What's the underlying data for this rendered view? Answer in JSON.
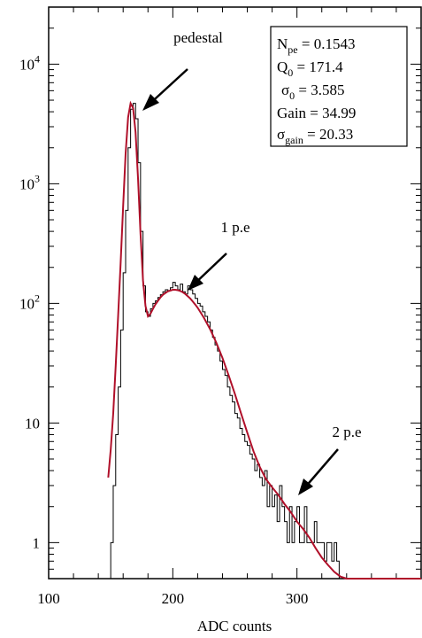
{
  "chart_data": {
    "type": "line",
    "title": "",
    "xlabel": "ADC counts",
    "ylabel": "",
    "xlim": [
      100,
      400
    ],
    "ylim": [
      0.5,
      30000
    ],
    "y_scale": "log",
    "x_ticks": [
      {
        "value": 100,
        "label": "100"
      },
      {
        "value": 200,
        "label": "200"
      },
      {
        "value": 300,
        "label": "300"
      }
    ],
    "y_ticks": [
      {
        "value": 1,
        "label": "1",
        "sup": ""
      },
      {
        "value": 10,
        "label": "10",
        "sup": ""
      },
      {
        "value": 100,
        "label": "10",
        "sup": "2"
      },
      {
        "value": 1000,
        "label": "10",
        "sup": "3"
      },
      {
        "value": 10000,
        "label": "10",
        "sup": "4"
      }
    ],
    "grid": false,
    "colors": {
      "histogram": "#000000",
      "fit": "#b0102a"
    },
    "series": [
      {
        "kind": "histogram",
        "x": [
          150,
          152,
          154,
          156,
          158,
          160,
          162,
          164,
          166,
          168,
          170,
          172,
          174,
          176,
          178,
          180,
          182,
          184,
          186,
          188,
          190,
          192,
          194,
          196,
          198,
          200,
          202,
          204,
          206,
          208,
          210,
          212,
          214,
          216,
          218,
          220,
          222,
          224,
          226,
          228,
          230,
          232,
          234,
          236,
          238,
          240,
          242,
          244,
          246,
          248,
          250,
          252,
          254,
          256,
          258,
          260,
          262,
          264,
          266,
          268,
          270,
          272,
          274,
          276,
          278,
          280,
          282,
          284,
          286,
          288,
          290,
          292,
          294,
          296,
          298,
          300,
          302,
          304,
          306,
          308,
          310,
          312,
          314,
          316,
          318,
          320,
          322,
          324,
          326,
          328,
          330,
          332
        ],
        "y": [
          1,
          3,
          8,
          20,
          60,
          180,
          600,
          2000,
          4200,
          4700,
          3500,
          1500,
          400,
          140,
          85,
          78,
          90,
          100,
          105,
          112,
          118,
          125,
          130,
          128,
          135,
          150,
          140,
          130,
          145,
          125,
          120,
          140,
          130,
          120,
          110,
          100,
          95,
          85,
          78,
          70,
          60,
          52,
          45,
          40,
          33,
          28,
          25,
          20,
          17,
          15,
          12,
          11,
          9,
          8,
          7,
          6.5,
          5.5,
          5,
          4,
          4.5,
          3.5,
          3,
          4,
          2,
          3,
          2,
          2.5,
          1.5,
          3,
          2,
          1.5,
          1,
          2,
          1,
          1.5,
          2,
          1,
          1,
          2,
          1,
          1,
          1,
          1.5,
          1,
          1,
          1,
          0.7,
          1,
          1,
          0.7,
          1,
          0.7
        ]
      },
      {
        "kind": "fit",
        "x": [
          148,
          150,
          152,
          154,
          156,
          158,
          160,
          162,
          164,
          166,
          168,
          170,
          172,
          174,
          176,
          178,
          180,
          182,
          184,
          186,
          188,
          190,
          192,
          194,
          196,
          198,
          200,
          202,
          204,
          206,
          208,
          210,
          212,
          214,
          216,
          218,
          220,
          225,
          230,
          235,
          240,
          245,
          250,
          255,
          260,
          265,
          270,
          275,
          280,
          285,
          290,
          295,
          300,
          305,
          310,
          315,
          320,
          325,
          330,
          335,
          340
        ],
        "y": [
          3.5,
          6,
          12,
          30,
          80,
          220,
          650,
          1800,
          3600,
          4700,
          4300,
          2700,
          1100,
          380,
          155,
          95,
          78,
          82,
          90,
          98,
          105,
          112,
          118,
          122,
          126,
          128,
          130,
          130,
          129,
          127,
          124,
          120,
          115,
          110,
          104,
          98,
          92,
          76,
          61,
          47,
          35,
          25,
          17.5,
          12,
          8.3,
          5.8,
          4.3,
          3.4,
          2.9,
          2.5,
          2.1,
          1.8,
          1.5,
          1.3,
          1.1,
          0.9,
          0.75,
          0.65,
          0.57,
          0.52,
          0.5
        ]
      }
    ],
    "annotations": [
      {
        "text": "pedestal",
        "x": 172,
        "y": 4700
      },
      {
        "text": "1 p.e",
        "x": 210,
        "y": 140
      },
      {
        "text": "2 p.e",
        "x": 295,
        "y": 2.4
      }
    ],
    "stats_box": [
      {
        "name": "N",
        "sub": "pe",
        "value": "0.1543"
      },
      {
        "name": "Q",
        "sub": "0",
        "value": "171.4"
      },
      {
        "name": "σ",
        "sub": "0",
        "value": "3.585"
      },
      {
        "name": "Gain",
        "sub": "",
        "value": "34.99"
      },
      {
        "name": "σ",
        "sub": "gain",
        "value": "20.33"
      }
    ]
  }
}
